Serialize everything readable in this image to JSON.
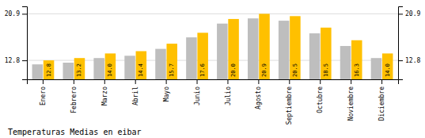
{
  "chart_data": {
    "type": "bar",
    "title": "Temperaturas Medias en eibar",
    "categories": [
      "Enero",
      "Febrero",
      "Marzo",
      "Abril",
      "Mayo",
      "Junio",
      "Julio",
      "Agosto",
      "Septiembre",
      "Octubre",
      "Noviembre",
      "Diciembre"
    ],
    "series": [
      {
        "color": "#BEBEBE",
        "values": [
          12.1,
          12.4,
          13.2,
          13.6,
          14.8,
          16.8,
          19.2,
          20.1,
          19.7,
          17.5,
          15.3,
          13.2
        ]
      },
      {
        "color": "#FFC000",
        "values": [
          12.8,
          13.2,
          14.0,
          14.4,
          15.7,
          17.6,
          20.0,
          20.9,
          20.5,
          18.5,
          16.3,
          14.0
        ],
        "value_labels": [
          "12.8",
          "13.2",
          "14.0",
          "14.4",
          "15.7",
          "17.6",
          "20.0",
          "20.9",
          "20.5",
          "18.5",
          "16.3",
          "14.0"
        ],
        "data_labels": true
      }
    ],
    "ylim": [
      9.5,
      22.2
    ],
    "yticks": [
      12.8,
      20.9
    ],
    "y2lim": [
      9.5,
      22.2
    ],
    "y2ticks": [
      12.8,
      20.9
    ],
    "grid": true
  }
}
